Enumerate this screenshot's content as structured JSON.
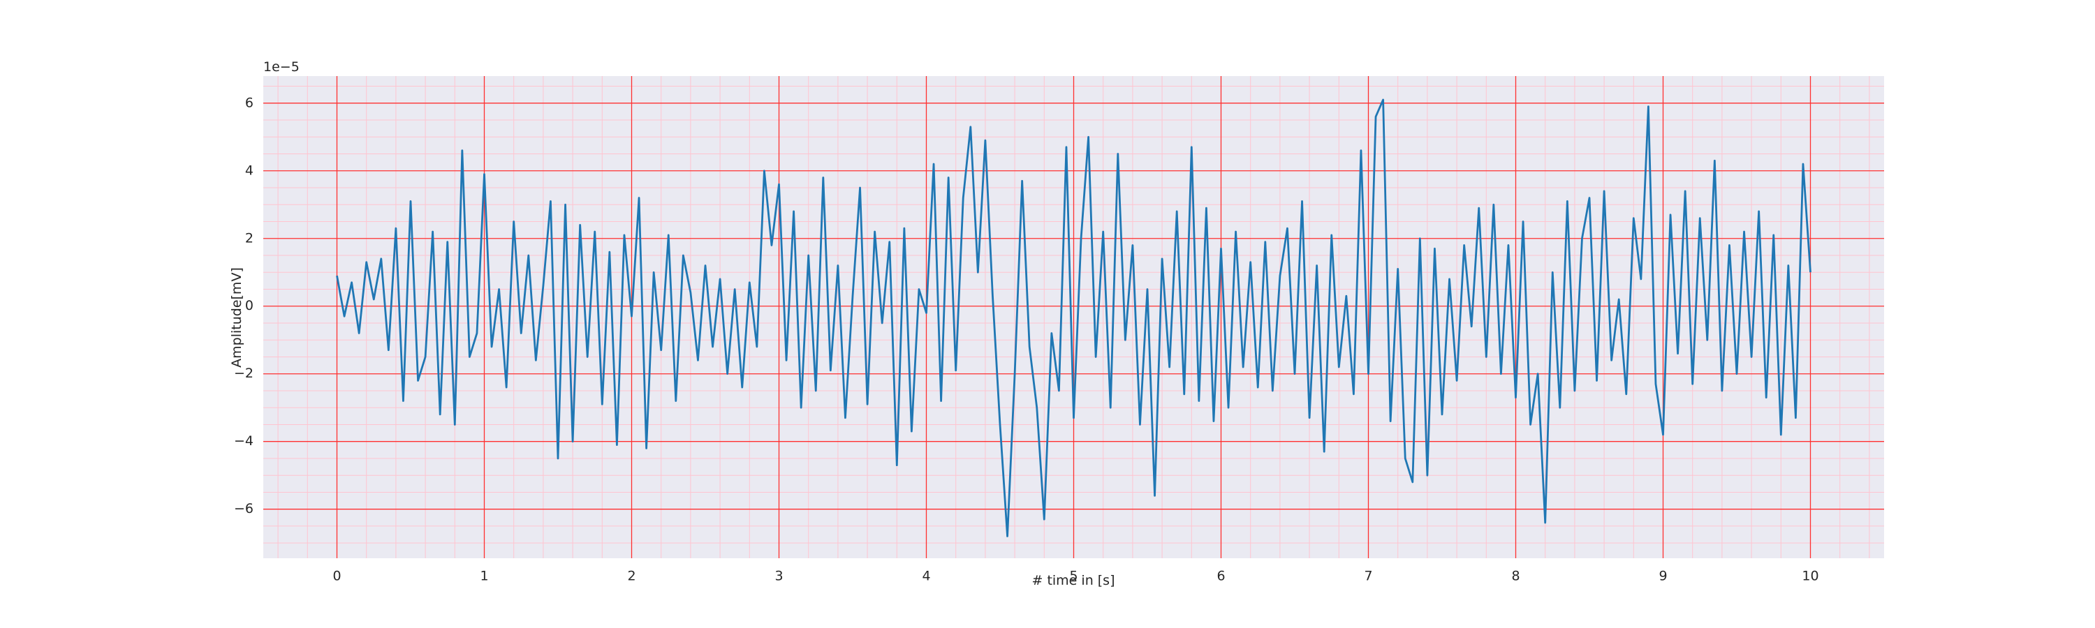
{
  "chart_data": {
    "type": "line",
    "xlabel": "# time in [s]",
    "ylabel": "Amplitude[mV]",
    "y_offset_label": "1e−5",
    "background": "#eaeaf2",
    "grid": true,
    "grid_color": "#ff3030",
    "minor_grid_color": "#ffc4d0",
    "xlim": [
      -0.5,
      10.5
    ],
    "ylim": [
      -7.45,
      6.8
    ],
    "xticks": [
      0,
      1,
      2,
      3,
      4,
      5,
      6,
      7,
      8,
      9,
      10
    ],
    "yticks": [
      {
        "value": -6,
        "label": "−6"
      },
      {
        "value": -4,
        "label": "−4"
      },
      {
        "value": -2,
        "label": "−2"
      },
      0,
      2,
      4,
      6
    ],
    "xminor": [
      -0.4,
      -0.2,
      0.2,
      0.4,
      0.6,
      0.8,
      1.2,
      1.4,
      1.6,
      1.8,
      2.2,
      2.4,
      2.6,
      2.8,
      3.2,
      3.4,
      3.6,
      3.8,
      4.2,
      4.4,
      4.6,
      4.8,
      5.2,
      5.4,
      5.6,
      5.8,
      6.2,
      6.4,
      6.6,
      6.8,
      7.2,
      7.4,
      7.6,
      7.8,
      8.2,
      8.4,
      8.6,
      8.8,
      9.2,
      9.4,
      9.6,
      9.8,
      10.2,
      10.4
    ],
    "yminor": [
      -7,
      -6.5,
      -5.5,
      -5,
      -4.5,
      -3.5,
      -3,
      -2.5,
      -1.5,
      -1,
      -0.5,
      0.5,
      1,
      1.5,
      2.5,
      3,
      3.5,
      4.5,
      5,
      5.5,
      6.5
    ],
    "x": [
      0,
      0.05,
      0.1,
      0.15,
      0.2,
      0.25,
      0.3,
      0.35,
      0.4,
      0.45,
      0.5,
      0.55,
      0.6,
      0.65,
      0.7,
      0.75,
      0.8,
      0.85,
      0.9,
      0.95,
      1,
      1.05,
      1.1,
      1.15,
      1.2,
      1.25,
      1.3,
      1.35,
      1.4,
      1.45,
      1.5,
      1.55,
      1.6,
      1.65,
      1.7,
      1.75,
      1.8,
      1.85,
      1.9,
      1.95,
      2,
      2.05,
      2.1,
      2.15,
      2.2,
      2.25,
      2.3,
      2.35,
      2.4,
      2.45,
      2.5,
      2.55,
      2.6,
      2.65,
      2.7,
      2.75,
      2.8,
      2.85,
      2.9,
      2.95,
      3,
      3.05,
      3.1,
      3.15,
      3.2,
      3.25,
      3.3,
      3.35,
      3.4,
      3.45,
      3.5,
      3.55,
      3.6,
      3.65,
      3.7,
      3.75,
      3.8,
      3.85,
      3.9,
      3.95,
      4,
      4.05,
      4.1,
      4.15,
      4.2,
      4.25,
      4.3,
      4.35,
      4.4,
      4.45,
      4.5,
      4.55,
      4.6,
      4.65,
      4.7,
      4.75,
      4.8,
      4.85,
      4.9,
      4.95,
      5,
      5.05,
      5.1,
      5.15,
      5.2,
      5.25,
      5.3,
      5.35,
      5.4,
      5.45,
      5.5,
      5.55,
      5.6,
      5.65,
      5.7,
      5.75,
      5.8,
      5.85,
      5.9,
      5.95,
      6,
      6.05,
      6.1,
      6.15,
      6.2,
      6.25,
      6.3,
      6.35,
      6.4,
      6.45,
      6.5,
      6.55,
      6.6,
      6.65,
      6.7,
      6.75,
      6.8,
      6.85,
      6.9,
      6.95,
      7,
      7.05,
      7.1,
      7.15,
      7.2,
      7.25,
      7.3,
      7.35,
      7.4,
      7.45,
      7.5,
      7.55,
      7.6,
      7.65,
      7.7,
      7.75,
      7.8,
      7.85,
      7.9,
      7.95,
      8,
      8.05,
      8.1,
      8.15,
      8.2,
      8.25,
      8.3,
      8.35,
      8.4,
      8.45,
      8.5,
      8.55,
      8.6,
      8.65,
      8.7,
      8.75,
      8.8,
      8.85,
      8.9,
      8.95,
      9,
      9.05,
      9.1,
      9.15,
      9.2,
      9.25,
      9.3,
      9.35,
      9.4,
      9.45,
      9.5,
      9.55,
      9.6,
      9.65,
      9.7,
      9.75,
      9.8,
      9.85,
      9.9,
      9.95,
      10
    ],
    "series": [
      {
        "color": "#1f77b4",
        "values": [
          0.9,
          -0.3,
          0.7,
          -0.8,
          1.3,
          0.2,
          1.4,
          -1.3,
          2.3,
          -2.8,
          3.1,
          -2.2,
          -1.5,
          2.2,
          -3.2,
          1.9,
          -3.5,
          4.6,
          -1.5,
          -0.8,
          3.9,
          -1.2,
          0.5,
          -2.4,
          2.5,
          -0.8,
          1.5,
          -1.6,
          0.6,
          3.1,
          -4.5,
          3.0,
          -4.0,
          2.4,
          -1.5,
          2.2,
          -2.9,
          1.6,
          -4.1,
          2.1,
          -0.3,
          3.2,
          -4.2,
          1.0,
          -1.3,
          2.1,
          -2.8,
          1.5,
          0.4,
          -1.6,
          1.2,
          -1.2,
          0.8,
          -2.0,
          0.5,
          -2.4,
          0.7,
          -1.2,
          4.0,
          1.8,
          3.6,
          -1.6,
          2.8,
          -3.0,
          1.5,
          -2.5,
          3.8,
          -1.9,
          1.2,
          -3.3,
          0.3,
          3.5,
          -2.9,
          2.2,
          -0.5,
          1.9,
          -4.7,
          2.3,
          -3.7,
          0.5,
          -0.2,
          4.2,
          -2.8,
          3.8,
          -1.9,
          3.2,
          5.3,
          1.0,
          4.9,
          0.3,
          -3.5,
          -6.8,
          -2.0,
          3.7,
          -1.2,
          -3.0,
          -6.3,
          -0.8,
          -2.5,
          4.7,
          -3.3,
          2.0,
          5.0,
          -1.5,
          2.2,
          -3.0,
          4.5,
          -1.0,
          1.8,
          -3.5,
          0.5,
          -5.6,
          1.4,
          -1.8,
          2.8,
          -2.6,
          4.7,
          -2.8,
          2.9,
          -3.4,
          1.7,
          -3.0,
          2.2,
          -1.8,
          1.3,
          -2.4,
          1.9,
          -2.5,
          0.9,
          2.3,
          -2.0,
          3.1,
          -3.3,
          1.2,
          -4.3,
          2.1,
          -1.8,
          0.3,
          -2.6,
          4.6,
          -2.0,
          5.6,
          6.1,
          -3.4,
          1.1,
          -4.5,
          -5.2,
          2.0,
          -5.0,
          1.7,
          -3.2,
          0.8,
          -2.2,
          1.8,
          -0.6,
          2.9,
          -1.5,
          3.0,
          -2.0,
          1.8,
          -2.7,
          2.5,
          -3.5,
          -2.0,
          -6.4,
          1.0,
          -3.0,
          3.1,
          -2.5,
          2.0,
          3.2,
          -2.2,
          3.4,
          -1.6,
          0.2,
          -2.6,
          2.6,
          0.8,
          5.9,
          -2.3,
          -3.8,
          2.7,
          -1.4,
          3.4,
          -2.3,
          2.6,
          -1.0,
          4.3,
          -2.5,
          1.8,
          -2.0,
          2.2,
          -1.5,
          2.8,
          -2.7,
          2.1,
          -3.8,
          1.2,
          -3.3,
          4.2,
          1.0
        ]
      }
    ]
  }
}
